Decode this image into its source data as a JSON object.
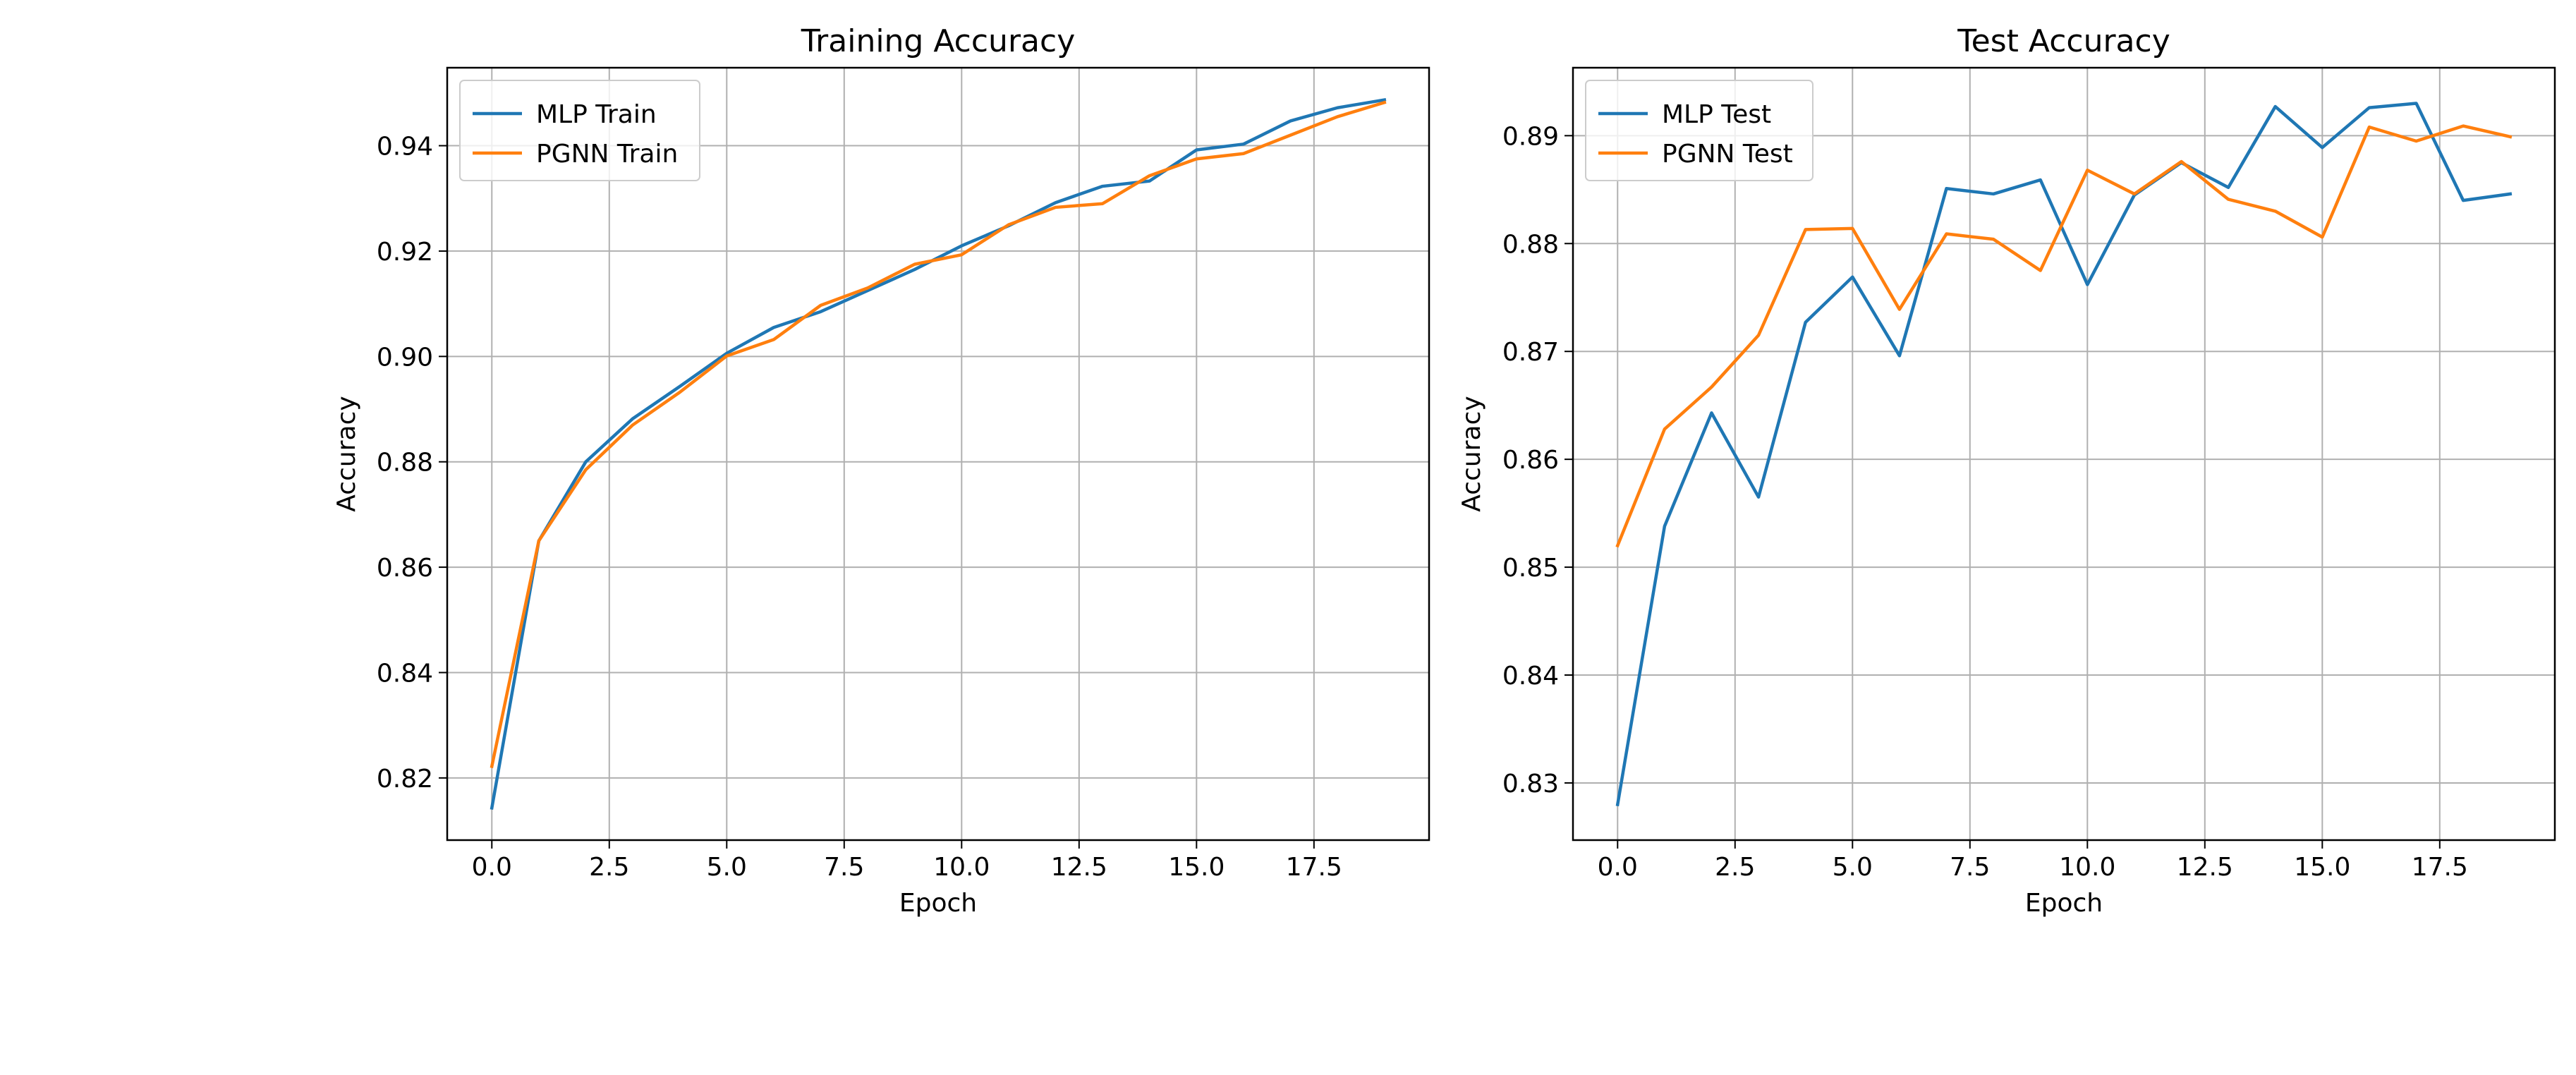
{
  "colors": {
    "mlp": "#1f77b4",
    "pgnn": "#ff7f0e",
    "grid": "#b0b0b0",
    "axes": "#000000"
  },
  "chart_data": [
    {
      "type": "line",
      "title": "Training Accuracy",
      "xlabel": "Epoch",
      "ylabel": "Accuracy",
      "grid": true,
      "legend_position": "top-left",
      "xlim": [
        -0.95,
        19.95
      ],
      "ylim": [
        0.8082,
        0.9548
      ],
      "xticks": [
        0,
        2.5,
        5,
        7.5,
        10,
        12.5,
        15,
        17.5
      ],
      "xtick_labels": [
        "0.0",
        "2.5",
        "5.0",
        "7.5",
        "10.0",
        "12.5",
        "15.0",
        "17.5"
      ],
      "yticks": [
        0.82,
        0.84,
        0.86,
        0.88,
        0.9,
        0.92,
        0.94
      ],
      "ytick_labels": [
        "0.82",
        "0.84",
        "0.86",
        "0.88",
        "0.90",
        "0.92",
        "0.94"
      ],
      "x": [
        0,
        1,
        2,
        3,
        4,
        5,
        6,
        7,
        8,
        9,
        10,
        11,
        12,
        13,
        14,
        15,
        16,
        17,
        18,
        19
      ],
      "series": [
        {
          "name": "MLP Train",
          "color": "#1f77b4",
          "values": [
            0.8143,
            0.865,
            0.88,
            0.8882,
            0.8943,
            0.9006,
            0.9055,
            0.9085,
            0.9125,
            0.9165,
            0.921,
            0.9248,
            0.9292,
            0.9323,
            0.9333,
            0.9392,
            0.9403,
            0.9447,
            0.9472,
            0.9487
          ]
        },
        {
          "name": "PGNN Train",
          "color": "#ff7f0e",
          "values": [
            0.8222,
            0.865,
            0.8785,
            0.887,
            0.8932,
            0.9001,
            0.9032,
            0.9097,
            0.913,
            0.9175,
            0.9193,
            0.925,
            0.9283,
            0.929,
            0.9343,
            0.9375,
            0.9385,
            0.942,
            0.9455,
            0.9482
          ]
        }
      ]
    },
    {
      "type": "line",
      "title": "Test Accuracy",
      "xlabel": "Epoch",
      "ylabel": "Accuracy",
      "grid": true,
      "legend_position": "top-left",
      "xlim": [
        -0.95,
        19.95
      ],
      "ylim": [
        0.8247,
        0.8963
      ],
      "xticks": [
        0,
        2.5,
        5,
        7.5,
        10,
        12.5,
        15,
        17.5
      ],
      "xtick_labels": [
        "0.0",
        "2.5",
        "5.0",
        "7.5",
        "10.0",
        "12.5",
        "15.0",
        "17.5"
      ],
      "yticks": [
        0.83,
        0.84,
        0.85,
        0.86,
        0.87,
        0.88,
        0.89
      ],
      "ytick_labels": [
        "0.83",
        "0.84",
        "0.85",
        "0.86",
        "0.87",
        "0.88",
        "0.89"
      ],
      "x": [
        0,
        1,
        2,
        3,
        4,
        5,
        6,
        7,
        8,
        9,
        10,
        11,
        12,
        13,
        14,
        15,
        16,
        17,
        18,
        19
      ],
      "series": [
        {
          "name": "MLP Test",
          "color": "#1f77b4",
          "values": [
            0.828,
            0.8538,
            0.8643,
            0.8565,
            0.8727,
            0.8769,
            0.8696,
            0.8851,
            0.8846,
            0.8859,
            0.8762,
            0.8845,
            0.8875,
            0.8852,
            0.8927,
            0.8889,
            0.8926,
            0.893,
            0.884,
            0.8846
          ]
        },
        {
          "name": "PGNN Test",
          "color": "#ff7f0e",
          "values": [
            0.852,
            0.8628,
            0.8667,
            0.8715,
            0.8813,
            0.8814,
            0.8739,
            0.8809,
            0.8804,
            0.8775,
            0.8868,
            0.8846,
            0.8876,
            0.8841,
            0.883,
            0.8806,
            0.8908,
            0.8895,
            0.8909,
            0.8899
          ]
        }
      ]
    }
  ]
}
